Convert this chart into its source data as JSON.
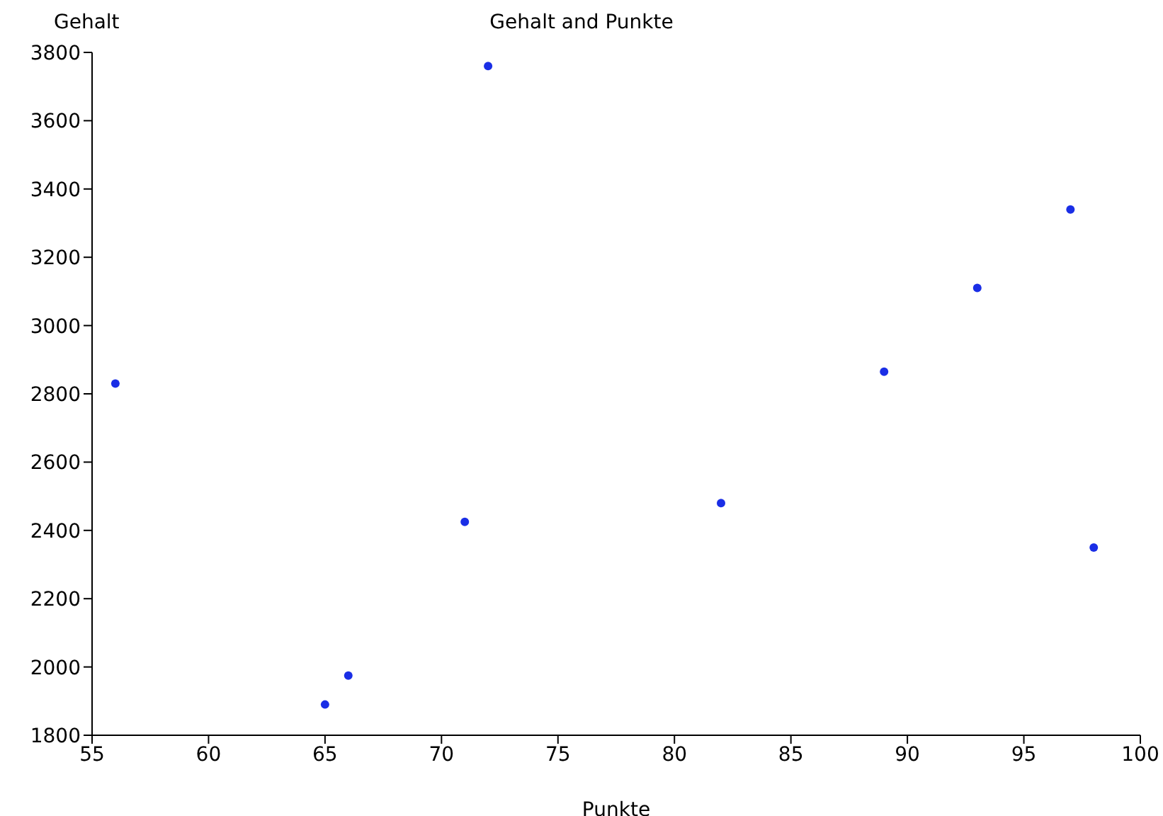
{
  "chart_data": {
    "type": "scatter",
    "title": "Gehalt and Punkte",
    "xlabel": "Punkte",
    "ylabel": "Gehalt",
    "x": [
      56,
      65,
      66,
      71,
      72,
      82,
      89,
      93,
      97,
      98
    ],
    "series": [
      {
        "color": "#1a2ee6",
        "values": [
          2830,
          1890,
          1975,
          2425,
          3760,
          2480,
          2865,
          3110,
          3340,
          2350
        ]
      }
    ],
    "xlim": [
      55,
      100
    ],
    "xticks": [
      55,
      60,
      65,
      70,
      75,
      80,
      85,
      90,
      95,
      100
    ],
    "ylim": [
      1800,
      3800
    ],
    "yticks": [
      1800,
      2000,
      2200,
      2400,
      2600,
      2800,
      3000,
      3200,
      3400,
      3600,
      3800
    ],
    "grid": false,
    "legend": false,
    "marker": "circle"
  }
}
